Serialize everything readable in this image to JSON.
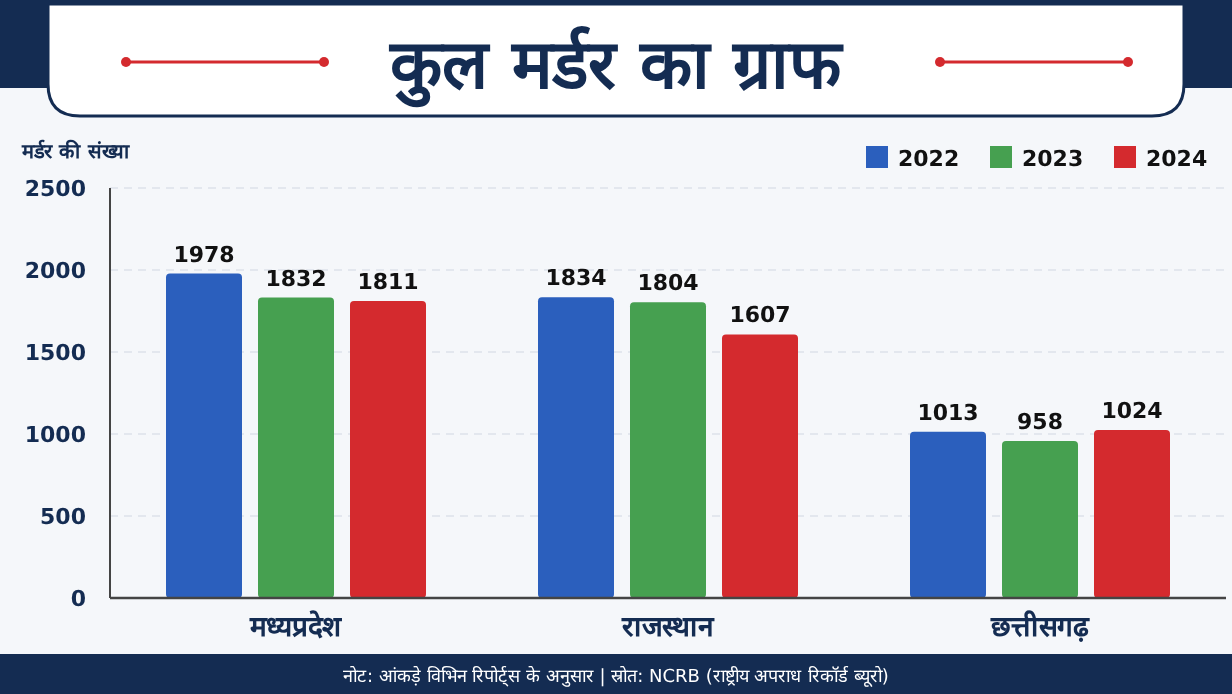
{
  "chart_data": {
    "type": "bar",
    "title": "कुल मर्डर का ग्राफ",
    "ylabel": "मर्डर की संख्या",
    "categories": [
      "मध्यप्रदेश",
      "राजस्थान",
      "छत्तीसगढ़"
    ],
    "series": [
      {
        "name": "2022",
        "color": "#2b5fbd",
        "values": [
          1978,
          1834,
          1013
        ]
      },
      {
        "name": "2023",
        "color": "#46a050",
        "values": [
          1832,
          1804,
          958
        ]
      },
      {
        "name": "2024",
        "color": "#d42a2e",
        "values": [
          1811,
          1607,
          1024
        ]
      }
    ],
    "ylim": [
      0,
      2500
    ],
    "yticks": [
      0,
      500,
      1000,
      1500,
      2000,
      2500
    ],
    "grid": "y",
    "legend": "top right",
    "data_labels": true,
    "annotations": [
      "नोट: आंकड़े विभिन रिपोर्ट्स के अनुसार | स्रोत: NCRB (राष्ट्रीय अपराध रिकॉर्ड ब्यूरो)"
    ]
  }
}
